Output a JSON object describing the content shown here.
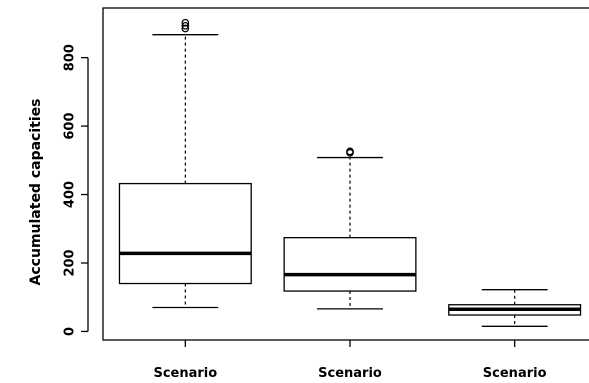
{
  "chart_data": {
    "type": "boxplot",
    "ylabel": "Accumulated capacities",
    "categories": [
      "Scenario",
      "Scenario",
      "Scenario"
    ],
    "ylim": [
      -25,
      945
    ],
    "yticks": [
      0,
      200,
      400,
      600,
      800
    ],
    "grid": false,
    "boxes": [
      {
        "category": "Scenario",
        "min": 70,
        "q1": 140,
        "median": 228,
        "q3": 432,
        "max": 867,
        "outliers": [
          885,
          893,
          902
        ]
      },
      {
        "category": "Scenario",
        "min": 66,
        "q1": 118,
        "median": 166,
        "q3": 274,
        "max": 508,
        "outliers": [
          522,
          526
        ]
      },
      {
        "category": "Scenario",
        "min": 15,
        "q1": 48,
        "median": 65,
        "q3": 78,
        "max": 122,
        "outliers": []
      }
    ]
  }
}
